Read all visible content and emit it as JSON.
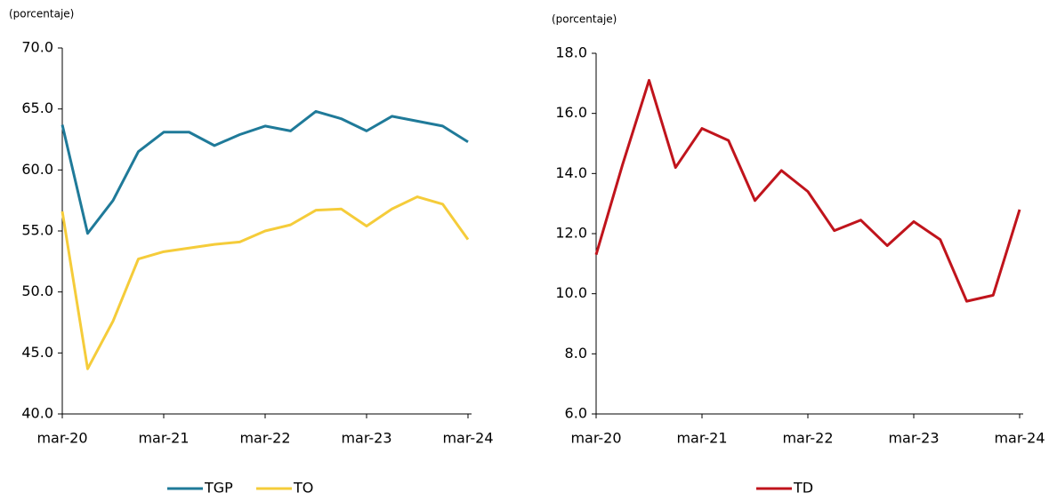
{
  "chart_data": [
    {
      "type": "line",
      "unit_label": "(porcentaje)",
      "categories": [
        "mar-20",
        null,
        null,
        null,
        "mar-21",
        null,
        null,
        null,
        "mar-22",
        null,
        null,
        null,
        "mar-23",
        null,
        null,
        null,
        "mar-24"
      ],
      "series": [
        {
          "name": "TGP",
          "color": "#1f7a99",
          "values": [
            63.7,
            54.8,
            57.5,
            61.5,
            63.1,
            63.1,
            62.0,
            62.9,
            63.6,
            63.2,
            64.8,
            64.2,
            63.2,
            64.4,
            64.0,
            63.6,
            62.3
          ]
        },
        {
          "name": "TO",
          "color": "#f5cc3a",
          "values": [
            56.6,
            43.7,
            47.6,
            52.7,
            53.3,
            53.6,
            53.9,
            54.1,
            55.0,
            55.5,
            56.7,
            56.8,
            55.4,
            56.8,
            57.8,
            57.2,
            54.3
          ]
        }
      ],
      "ylim": [
        40,
        70
      ],
      "yticks": [
        {
          "value": 40,
          "label": "40.0"
        },
        {
          "value": 45,
          "label": "45.0"
        },
        {
          "value": 50,
          "label": "50.0"
        },
        {
          "value": 55,
          "label": "55.0"
        },
        {
          "value": 60,
          "label": "60.0"
        },
        {
          "value": 65,
          "label": "65.0"
        },
        {
          "value": 70,
          "label": "70.0"
        }
      ]
    },
    {
      "type": "line",
      "unit_label": "(porcentaje)",
      "categories": [
        "mar-20",
        null,
        null,
        null,
        "mar-21",
        null,
        null,
        null,
        "mar-22",
        null,
        null,
        null,
        "mar-23",
        null,
        null,
        null,
        "mar-24"
      ],
      "series": [
        {
          "name": "TD",
          "color": "#c0141c",
          "values": [
            11.3,
            14.3,
            17.1,
            14.2,
            15.5,
            15.1,
            13.1,
            14.1,
            13.4,
            12.1,
            12.45,
            11.6,
            12.4,
            11.8,
            9.75,
            9.95,
            12.8
          ]
        }
      ],
      "ylim": [
        6,
        18
      ],
      "yticks": [
        {
          "value": 6,
          "label": "6.0"
        },
        {
          "value": 8,
          "label": "8.0"
        },
        {
          "value": 10,
          "label": "10.0"
        },
        {
          "value": 12,
          "label": "12.0"
        },
        {
          "value": 14,
          "label": "14.0"
        },
        {
          "value": 16,
          "label": "16.0"
        },
        {
          "value": 18,
          "label": "18.0"
        }
      ]
    }
  ]
}
